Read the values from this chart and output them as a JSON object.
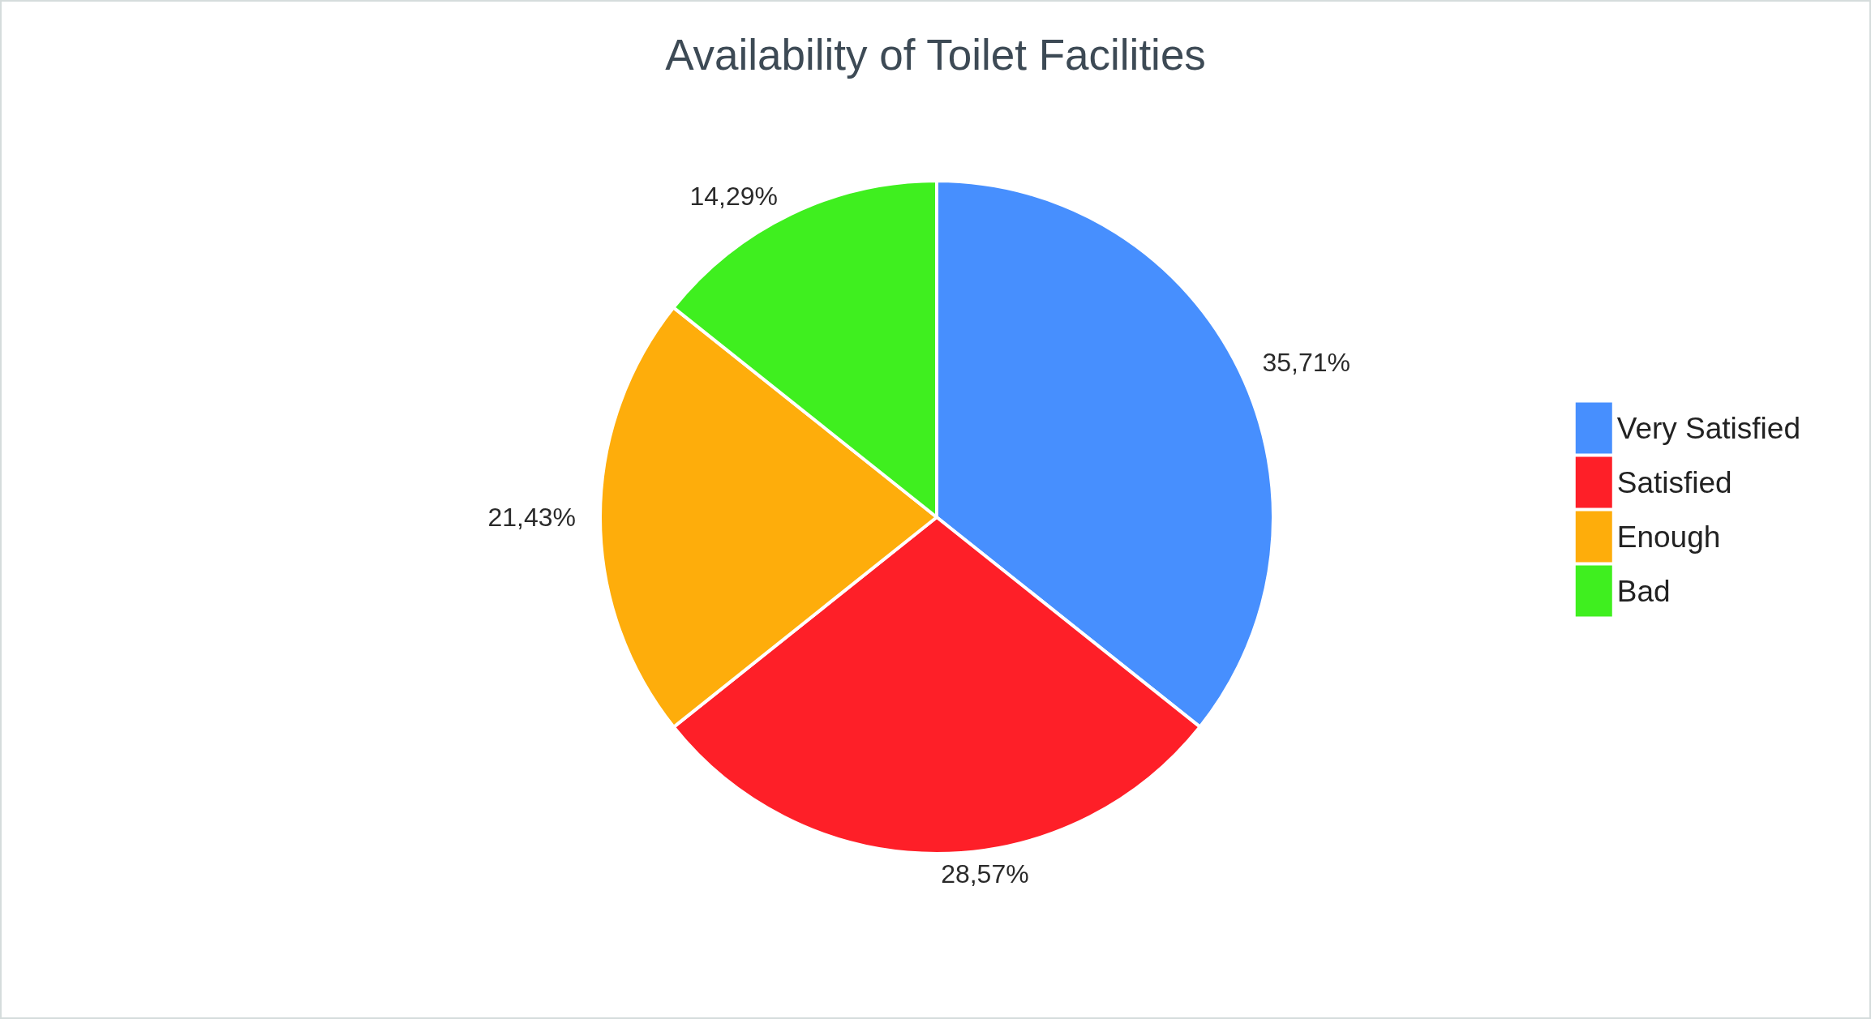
{
  "chart_data": {
    "type": "pie",
    "title": "Availability of Toilet Facilities",
    "categories": [
      "Very Satisfied",
      "Satisfied",
      "Enough",
      "Bad"
    ],
    "values": [
      35.71,
      28.57,
      21.43,
      14.29
    ],
    "value_labels": [
      "35,71%",
      "28,57%",
      "21,43%",
      "14,29%"
    ],
    "colors": [
      "#478ffe",
      "#fe1f28",
      "#fead0b",
      "#3fef1f"
    ],
    "legend": "right"
  }
}
